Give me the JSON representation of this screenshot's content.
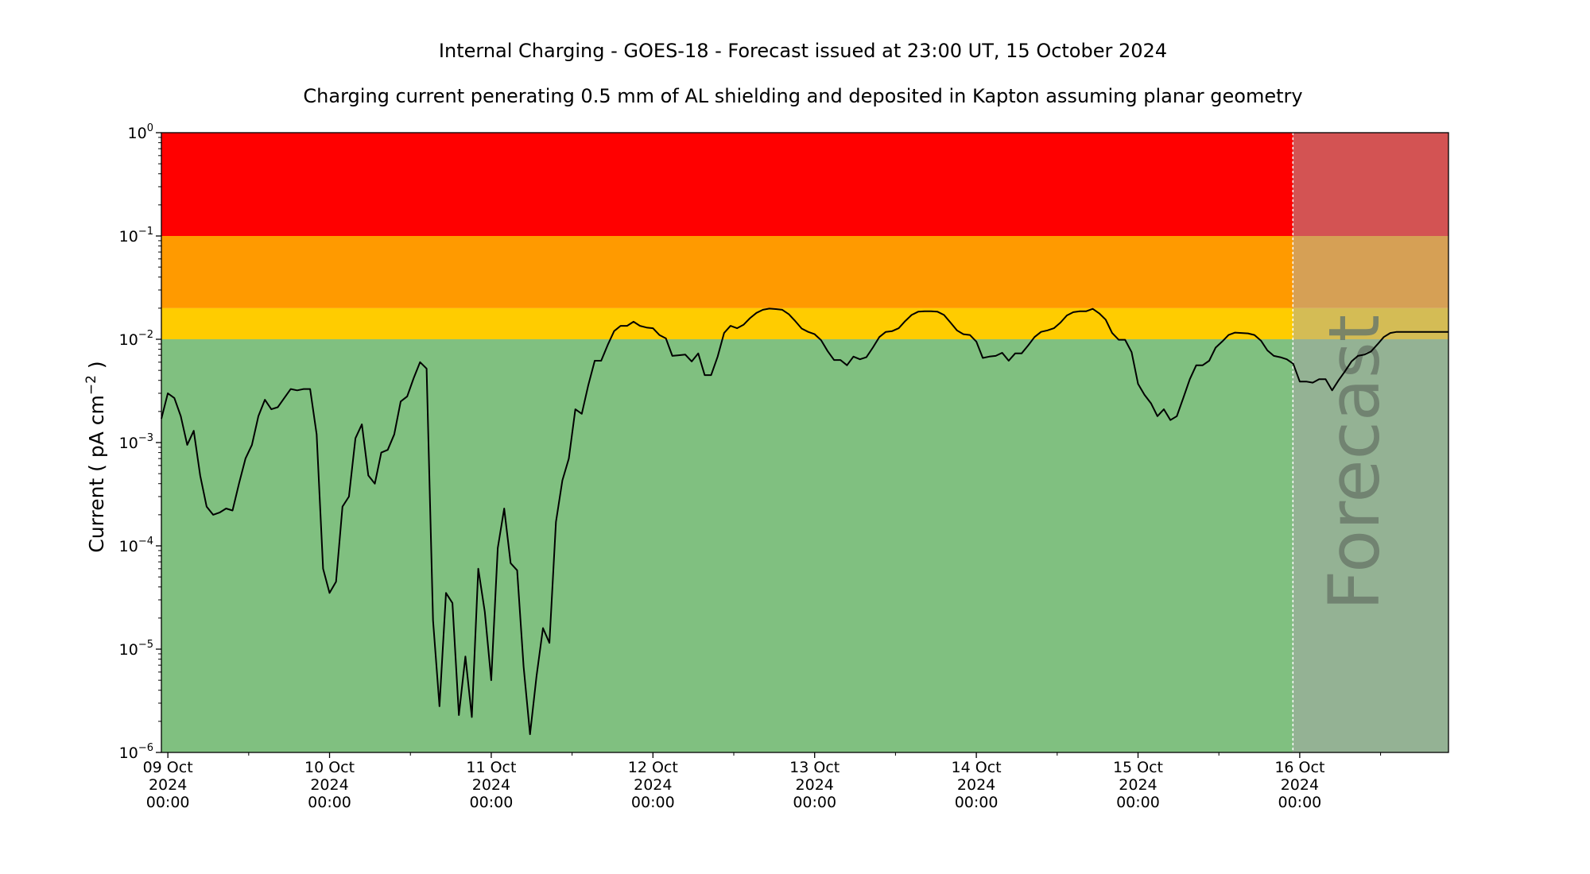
{
  "chart_data": {
    "type": "line",
    "title": "Internal Charging - GOES-18 - Forecast issued at 23:00 UT, 15 October 2024",
    "subtitle": "Charging current penerating 0.5 mm of AL shielding and deposited in Kapton assuming planar geometry",
    "ylabel": "Current ( pA cm",
    "ylabel_exp": "−2",
    "ylabel_tail": " )",
    "yscale": "log",
    "ylim": [
      1e-06,
      1
    ],
    "y_ticks": [
      {
        "base": "10",
        "exp": "0",
        "value": 1
      },
      {
        "base": "10",
        "exp": "−1",
        "value": 0.1
      },
      {
        "base": "10",
        "exp": "−2",
        "value": 0.01
      },
      {
        "base": "10",
        "exp": "−3",
        "value": 0.001
      },
      {
        "base": "10",
        "exp": "−4",
        "value": 0.0001
      },
      {
        "base": "10",
        "exp": "−5",
        "value": 1e-05
      },
      {
        "base": "10",
        "exp": "−6",
        "value": 1e-06
      }
    ],
    "x_ticks": [
      {
        "line1": "09 Oct",
        "line2": "2024",
        "line3": "00:00",
        "day": 0
      },
      {
        "line1": "10 Oct",
        "line2": "2024",
        "line3": "00:00",
        "day": 1
      },
      {
        "line1": "11 Oct",
        "line2": "2024",
        "line3": "00:00",
        "day": 2
      },
      {
        "line1": "12 Oct",
        "line2": "2024",
        "line3": "00:00",
        "day": 3
      },
      {
        "line1": "13 Oct",
        "line2": "2024",
        "line3": "00:00",
        "day": 4
      },
      {
        "line1": "14 Oct",
        "line2": "2024",
        "line3": "00:00",
        "day": 5
      },
      {
        "line1": "15 Oct",
        "line2": "2024",
        "line3": "00:00",
        "day": 6
      },
      {
        "line1": "16 Oct",
        "line2": "2024",
        "line3": "00:00",
        "day": 7
      }
    ],
    "xlim_days": [
      -0.04,
      7.92
    ],
    "forecast_start_day": 6.958,
    "forecast_label": "Forecast",
    "bands": [
      {
        "from": 0.1,
        "to": 1,
        "color": "#ff0000",
        "forecast_color": "#d35353"
      },
      {
        "from": 0.02,
        "to": 0.1,
        "color": "#ff9a00",
        "forecast_color": "#d6a055"
      },
      {
        "from": 0.01,
        "to": 0.02,
        "color": "#ffcc00",
        "forecast_color": "#d4bc55"
      },
      {
        "from": 1e-06,
        "to": 0.01,
        "color": "#80c080",
        "forecast_color": "#94b294"
      }
    ],
    "series": [
      {
        "color": "#000000",
        "points": [
          [
            -0.04,
            0.0017
          ],
          [
            0.0,
            0.003
          ],
          [
            0.04,
            0.0027
          ],
          [
            0.08,
            0.0018
          ],
          [
            0.12,
            0.00095
          ],
          [
            0.16,
            0.0013
          ],
          [
            0.2,
            0.00048
          ],
          [
            0.24,
            0.00024
          ],
          [
            0.28,
            0.0002
          ],
          [
            0.32,
            0.00021
          ],
          [
            0.36,
            0.00023
          ],
          [
            0.4,
            0.00022
          ],
          [
            0.44,
            0.0004
          ],
          [
            0.48,
            0.0007
          ],
          [
            0.52,
            0.00095
          ],
          [
            0.56,
            0.0018
          ],
          [
            0.6,
            0.0026
          ],
          [
            0.64,
            0.0021
          ],
          [
            0.68,
            0.0022
          ],
          [
            0.72,
            0.0027
          ],
          [
            0.76,
            0.0033
          ],
          [
            0.8,
            0.0032
          ],
          [
            0.84,
            0.0033
          ],
          [
            0.88,
            0.0033
          ],
          [
            0.92,
            0.0012
          ],
          [
            0.96,
            6e-05
          ],
          [
            1.0,
            3.5e-05
          ],
          [
            1.04,
            4.5e-05
          ],
          [
            1.08,
            0.00024
          ],
          [
            1.12,
            0.0003
          ],
          [
            1.16,
            0.0011
          ],
          [
            1.2,
            0.0015
          ],
          [
            1.24,
            0.00048
          ],
          [
            1.28,
            0.0004
          ],
          [
            1.32,
            0.0008
          ],
          [
            1.36,
            0.00085
          ],
          [
            1.4,
            0.0012
          ],
          [
            1.44,
            0.0025
          ],
          [
            1.48,
            0.0028
          ],
          [
            1.52,
            0.0042
          ],
          [
            1.56,
            0.006
          ],
          [
            1.6,
            0.0052
          ],
          [
            1.64,
            1.9e-05
          ],
          [
            1.68,
            2.8e-06
          ],
          [
            1.72,
            3.5e-05
          ],
          [
            1.76,
            2.8e-05
          ],
          [
            1.8,
            2.3e-06
          ],
          [
            1.84,
            8.5e-06
          ],
          [
            1.88,
            2.2e-06
          ],
          [
            1.92,
            6e-05
          ],
          [
            1.96,
            2.3e-05
          ],
          [
            2.0,
            5e-06
          ],
          [
            2.04,
            9.5e-05
          ],
          [
            2.08,
            0.00023
          ],
          [
            2.12,
            6.8e-05
          ],
          [
            2.16,
            5.8e-05
          ],
          [
            2.2,
            6.8e-06
          ],
          [
            2.24,
            1.5e-06
          ],
          [
            2.28,
            5.5e-06
          ],
          [
            2.32,
            1.6e-05
          ],
          [
            2.36,
            1.15e-05
          ],
          [
            2.4,
            0.00017
          ],
          [
            2.44,
            0.00043
          ],
          [
            2.48,
            0.0007
          ],
          [
            2.52,
            0.0021
          ],
          [
            2.56,
            0.0019
          ],
          [
            2.6,
            0.0036
          ],
          [
            2.64,
            0.0062
          ],
          [
            2.68,
            0.0062
          ],
          [
            2.72,
            0.0088
          ],
          [
            2.76,
            0.012
          ],
          [
            2.8,
            0.0135
          ],
          [
            2.84,
            0.0135
          ],
          [
            2.88,
            0.0148
          ],
          [
            2.92,
            0.0135
          ],
          [
            2.96,
            0.013
          ],
          [
            3.0,
            0.0128
          ],
          [
            3.04,
            0.011
          ],
          [
            3.08,
            0.0102
          ],
          [
            3.12,
            0.0069
          ],
          [
            3.16,
            0.007
          ],
          [
            3.2,
            0.0071
          ],
          [
            3.24,
            0.0061
          ],
          [
            3.28,
            0.0073
          ],
          [
            3.32,
            0.0045
          ],
          [
            3.36,
            0.0045
          ],
          [
            3.4,
            0.0068
          ],
          [
            3.44,
            0.0115
          ],
          [
            3.48,
            0.0135
          ],
          [
            3.52,
            0.0128
          ],
          [
            3.56,
            0.0138
          ],
          [
            3.6,
            0.016
          ],
          [
            3.64,
            0.018
          ],
          [
            3.68,
            0.0193
          ],
          [
            3.72,
            0.0198
          ],
          [
            3.76,
            0.0196
          ],
          [
            3.8,
            0.0193
          ],
          [
            3.84,
            0.0175
          ],
          [
            3.88,
            0.015
          ],
          [
            3.92,
            0.0127
          ],
          [
            3.96,
            0.0118
          ],
          [
            4.0,
            0.0112
          ],
          [
            4.04,
            0.0098
          ],
          [
            4.08,
            0.0077
          ],
          [
            4.12,
            0.0063
          ],
          [
            4.16,
            0.0063
          ],
          [
            4.2,
            0.0056
          ],
          [
            4.24,
            0.0068
          ],
          [
            4.28,
            0.0064
          ],
          [
            4.32,
            0.0067
          ],
          [
            4.36,
            0.0083
          ],
          [
            4.4,
            0.0105
          ],
          [
            4.44,
            0.0118
          ],
          [
            4.48,
            0.012
          ],
          [
            4.52,
            0.0128
          ],
          [
            4.56,
            0.015
          ],
          [
            4.6,
            0.0172
          ],
          [
            4.64,
            0.0185
          ],
          [
            4.68,
            0.0187
          ],
          [
            4.72,
            0.0187
          ],
          [
            4.76,
            0.0185
          ],
          [
            4.8,
            0.0172
          ],
          [
            4.84,
            0.0145
          ],
          [
            4.88,
            0.0122
          ],
          [
            4.92,
            0.0112
          ],
          [
            4.96,
            0.011
          ],
          [
            5.0,
            0.0095
          ],
          [
            5.04,
            0.0066
          ],
          [
            5.08,
            0.0068
          ],
          [
            5.12,
            0.0069
          ],
          [
            5.16,
            0.0074
          ],
          [
            5.2,
            0.0062
          ],
          [
            5.24,
            0.0073
          ],
          [
            5.28,
            0.0073
          ],
          [
            5.32,
            0.0087
          ],
          [
            5.36,
            0.0105
          ],
          [
            5.4,
            0.0118
          ],
          [
            5.44,
            0.0122
          ],
          [
            5.48,
            0.0128
          ],
          [
            5.52,
            0.0145
          ],
          [
            5.56,
            0.017
          ],
          [
            5.6,
            0.0183
          ],
          [
            5.64,
            0.0187
          ],
          [
            5.68,
            0.0187
          ],
          [
            5.72,
            0.0197
          ],
          [
            5.76,
            0.0178
          ],
          [
            5.8,
            0.0155
          ],
          [
            5.84,
            0.0115
          ],
          [
            5.88,
            0.0099
          ],
          [
            5.92,
            0.0099
          ],
          [
            5.96,
            0.0075
          ],
          [
            6.0,
            0.0037
          ],
          [
            6.04,
            0.0029
          ],
          [
            6.08,
            0.0024
          ],
          [
            6.12,
            0.0018
          ],
          [
            6.16,
            0.0021
          ],
          [
            6.2,
            0.00165
          ],
          [
            6.24,
            0.0018
          ],
          [
            6.28,
            0.0027
          ],
          [
            6.32,
            0.0041
          ],
          [
            6.36,
            0.0056
          ],
          [
            6.4,
            0.0056
          ],
          [
            6.44,
            0.0062
          ],
          [
            6.48,
            0.0083
          ],
          [
            6.52,
            0.0095
          ],
          [
            6.56,
            0.011
          ],
          [
            6.6,
            0.0116
          ],
          [
            6.64,
            0.0115
          ],
          [
            6.68,
            0.0114
          ],
          [
            6.72,
            0.011
          ],
          [
            6.76,
            0.0097
          ],
          [
            6.8,
            0.0078
          ],
          [
            6.84,
            0.0069
          ],
          [
            6.88,
            0.0067
          ],
          [
            6.92,
            0.0064
          ],
          [
            6.96,
            0.0058
          ],
          [
            7.0,
            0.0039
          ],
          [
            7.04,
            0.0039
          ],
          [
            7.08,
            0.0038
          ],
          [
            7.12,
            0.0041
          ],
          [
            7.16,
            0.0041
          ],
          [
            7.2,
            0.0032
          ],
          [
            7.24,
            0.004
          ],
          [
            7.28,
            0.0049
          ],
          [
            7.32,
            0.0061
          ],
          [
            7.36,
            0.0069
          ],
          [
            7.4,
            0.0071
          ],
          [
            7.44,
            0.0076
          ],
          [
            7.48,
            0.0089
          ],
          [
            7.52,
            0.0105
          ],
          [
            7.56,
            0.0115
          ],
          [
            7.6,
            0.0118
          ],
          [
            7.64,
            0.0118
          ],
          [
            7.92,
            0.0118
          ]
        ]
      }
    ]
  }
}
